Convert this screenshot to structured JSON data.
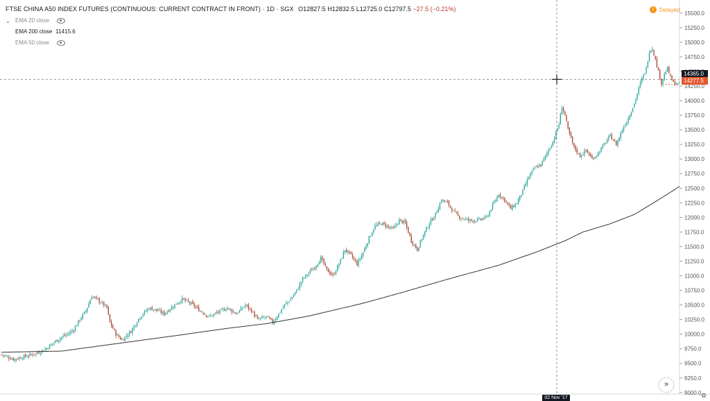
{
  "header": {
    "title": "FTSE CHINA A50 INDEX FUTURES (CONTINUOUS: CURRENT CONTRACT IN FRONT) · 1D · SGX",
    "open": "O12827.5",
    "high": "H12832.5",
    "low": "L12725.0",
    "close": "C12797.5",
    "change": "−27.5 (−0.21%)"
  },
  "legend": [
    {
      "label": "EMA 20 close",
      "value": "",
      "icon": "eye-icon"
    },
    {
      "label": "EMA 200 close",
      "value": "11415.6",
      "icon": "eye-icon"
    },
    {
      "label": "EMA 50 close",
      "value": "",
      "icon": "eye-icon"
    }
  ],
  "status": {
    "delayed": "Delayed",
    "icon": "!"
  },
  "crosshair_price": "14365.0",
  "last_price": "14277.5",
  "date_tag": "02 Nov '17",
  "colors": {
    "up": "#26a69a",
    "down": "#a5472f",
    "ema": "#333333",
    "crosshair": "#777777"
  },
  "chart_data": {
    "type": "candlestick",
    "y_axis_ticks": [
      9000,
      9250,
      9500,
      9750,
      10000,
      10250,
      10500,
      10750,
      11000,
      11250,
      11500,
      11750,
      12000,
      12250,
      12500,
      12750,
      13000,
      13250,
      13500,
      13750,
      14000,
      14250,
      14500,
      14750,
      15000,
      15250,
      15500
    ],
    "y_axis_tick_labels": [
      "9000.0",
      "9250.0",
      "9500.0",
      "9750.0",
      "10000.0",
      "10250.0",
      "10500.0",
      "10750.0",
      "11000.0",
      "11250.0",
      "11500.0",
      "11750.0",
      "12000.0",
      "12250.0",
      "12500.0",
      "12750.0",
      "13000.0",
      "13250.0",
      "13500.0",
      "13750.0",
      "14000.0",
      "14250.0",
      "14500.0",
      "14750.0",
      "15000.0",
      "15250.0",
      "15500.0"
    ],
    "ylim": [
      8950,
      15700
    ],
    "close_path": [
      [
        0,
        9650
      ],
      [
        8,
        9570
      ],
      [
        16,
        9620
      ],
      [
        24,
        9680
      ],
      [
        30,
        9760
      ],
      [
        36,
        9880
      ],
      [
        40,
        9950
      ],
      [
        44,
        10000
      ],
      [
        48,
        10080
      ],
      [
        52,
        10250
      ],
      [
        56,
        10400
      ],
      [
        60,
        10650
      ],
      [
        62,
        10620
      ],
      [
        66,
        10550
      ],
      [
        70,
        10450
      ],
      [
        72,
        10200
      ],
      [
        76,
        10000
      ],
      [
        80,
        9900
      ],
      [
        86,
        10050
      ],
      [
        92,
        10300
      ],
      [
        98,
        10450
      ],
      [
        104,
        10400
      ],
      [
        108,
        10350
      ],
      [
        114,
        10480
      ],
      [
        120,
        10600
      ],
      [
        126,
        10520
      ],
      [
        132,
        10400
      ],
      [
        138,
        10300
      ],
      [
        144,
        10380
      ],
      [
        150,
        10450
      ],
      [
        156,
        10350
      ],
      [
        162,
        10500
      ],
      [
        166,
        10400
      ],
      [
        170,
        10250
      ],
      [
        176,
        10300
      ],
      [
        180,
        10200
      ],
      [
        184,
        10350
      ],
      [
        188,
        10500
      ],
      [
        192,
        10600
      ],
      [
        196,
        10750
      ],
      [
        200,
        10950
      ],
      [
        204,
        11050
      ],
      [
        208,
        11150
      ],
      [
        212,
        11300
      ],
      [
        216,
        11100
      ],
      [
        220,
        11000
      ],
      [
        224,
        11200
      ],
      [
        228,
        11450
      ],
      [
        232,
        11350
      ],
      [
        236,
        11200
      ],
      [
        240,
        11400
      ],
      [
        244,
        11650
      ],
      [
        248,
        11850
      ],
      [
        252,
        11900
      ],
      [
        256,
        11850
      ],
      [
        260,
        11800
      ],
      [
        264,
        11950
      ],
      [
        268,
        11900
      ],
      [
        272,
        11600
      ],
      [
        276,
        11450
      ],
      [
        280,
        11700
      ],
      [
        284,
        11900
      ],
      [
        288,
        12050
      ],
      [
        292,
        12300
      ],
      [
        296,
        12250
      ],
      [
        300,
        12100
      ],
      [
        304,
        12000
      ],
      [
        310,
        11950
      ],
      [
        316,
        11950
      ],
      [
        322,
        12000
      ],
      [
        326,
        12200
      ],
      [
        330,
        12400
      ],
      [
        334,
        12300
      ],
      [
        338,
        12150
      ],
      [
        342,
        12250
      ],
      [
        346,
        12450
      ],
      [
        350,
        12700
      ],
      [
        354,
        12850
      ],
      [
        358,
        12900
      ],
      [
        362,
        13100
      ],
      [
        366,
        13300
      ],
      [
        370,
        13600
      ],
      [
        372,
        13900
      ],
      [
        374,
        13750
      ],
      [
        376,
        13500
      ],
      [
        380,
        13200
      ],
      [
        384,
        13050
      ],
      [
        388,
        13150
      ],
      [
        392,
        13000
      ],
      [
        396,
        13100
      ],
      [
        400,
        13250
      ],
      [
        404,
        13400
      ],
      [
        408,
        13250
      ],
      [
        412,
        13500
      ],
      [
        416,
        13700
      ],
      [
        420,
        13950
      ],
      [
        424,
        14300
      ],
      [
        428,
        14550
      ],
      [
        430,
        14850
      ],
      [
        432,
        14900
      ],
      [
        434,
        14700
      ],
      [
        436,
        14500
      ],
      [
        438,
        14300
      ],
      [
        440,
        14450
      ],
      [
        442,
        14550
      ],
      [
        444,
        14400
      ],
      [
        446,
        14300
      ],
      [
        450,
        14277.5
      ]
    ],
    "ema200_path": [
      [
        0,
        9690
      ],
      [
        40,
        9710
      ],
      [
        80,
        9850
      ],
      [
        120,
        9990
      ],
      [
        150,
        10100
      ],
      [
        176,
        10180
      ],
      [
        204,
        10310
      ],
      [
        240,
        10530
      ],
      [
        264,
        10700
      ],
      [
        296,
        10940
      ],
      [
        330,
        11180
      ],
      [
        356,
        11415.6
      ],
      [
        374,
        11600
      ],
      [
        386,
        11750
      ],
      [
        404,
        11890
      ],
      [
        420,
        12050
      ],
      [
        436,
        12300
      ],
      [
        450,
        12530
      ]
    ],
    "x_domain": [
      0,
      450
    ]
  }
}
